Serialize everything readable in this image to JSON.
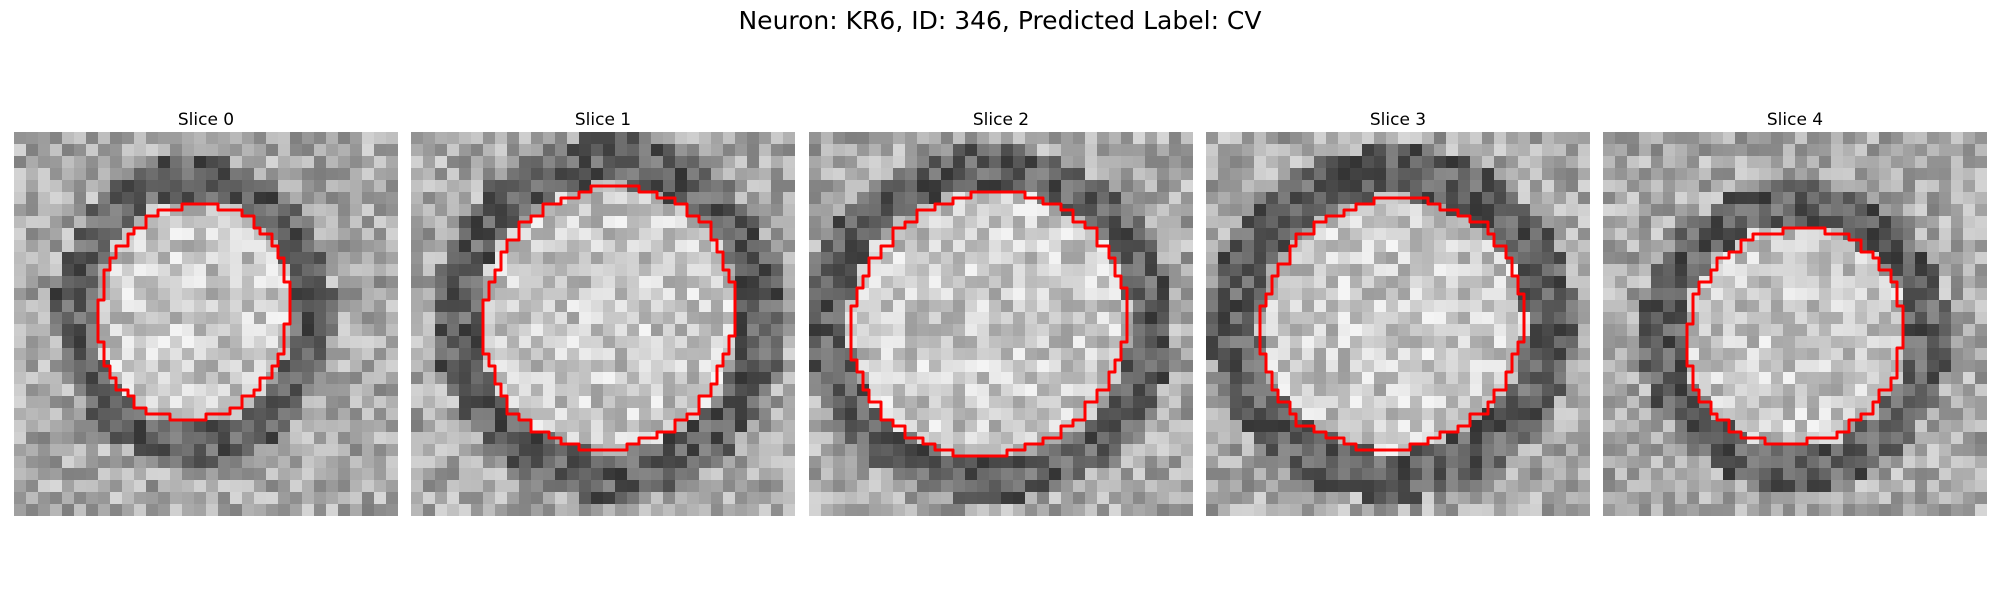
{
  "figure": {
    "title": "Neuron: KR6, ID: 346, Predicted Label: CV",
    "overlay_color": "#ff0000",
    "colormap": "gray"
  },
  "panels": [
    {
      "title": "Slice 0"
    },
    {
      "title": "Slice 1"
    },
    {
      "title": "Slice 2"
    },
    {
      "title": "Slice 3"
    },
    {
      "title": "Slice 4"
    }
  ]
}
